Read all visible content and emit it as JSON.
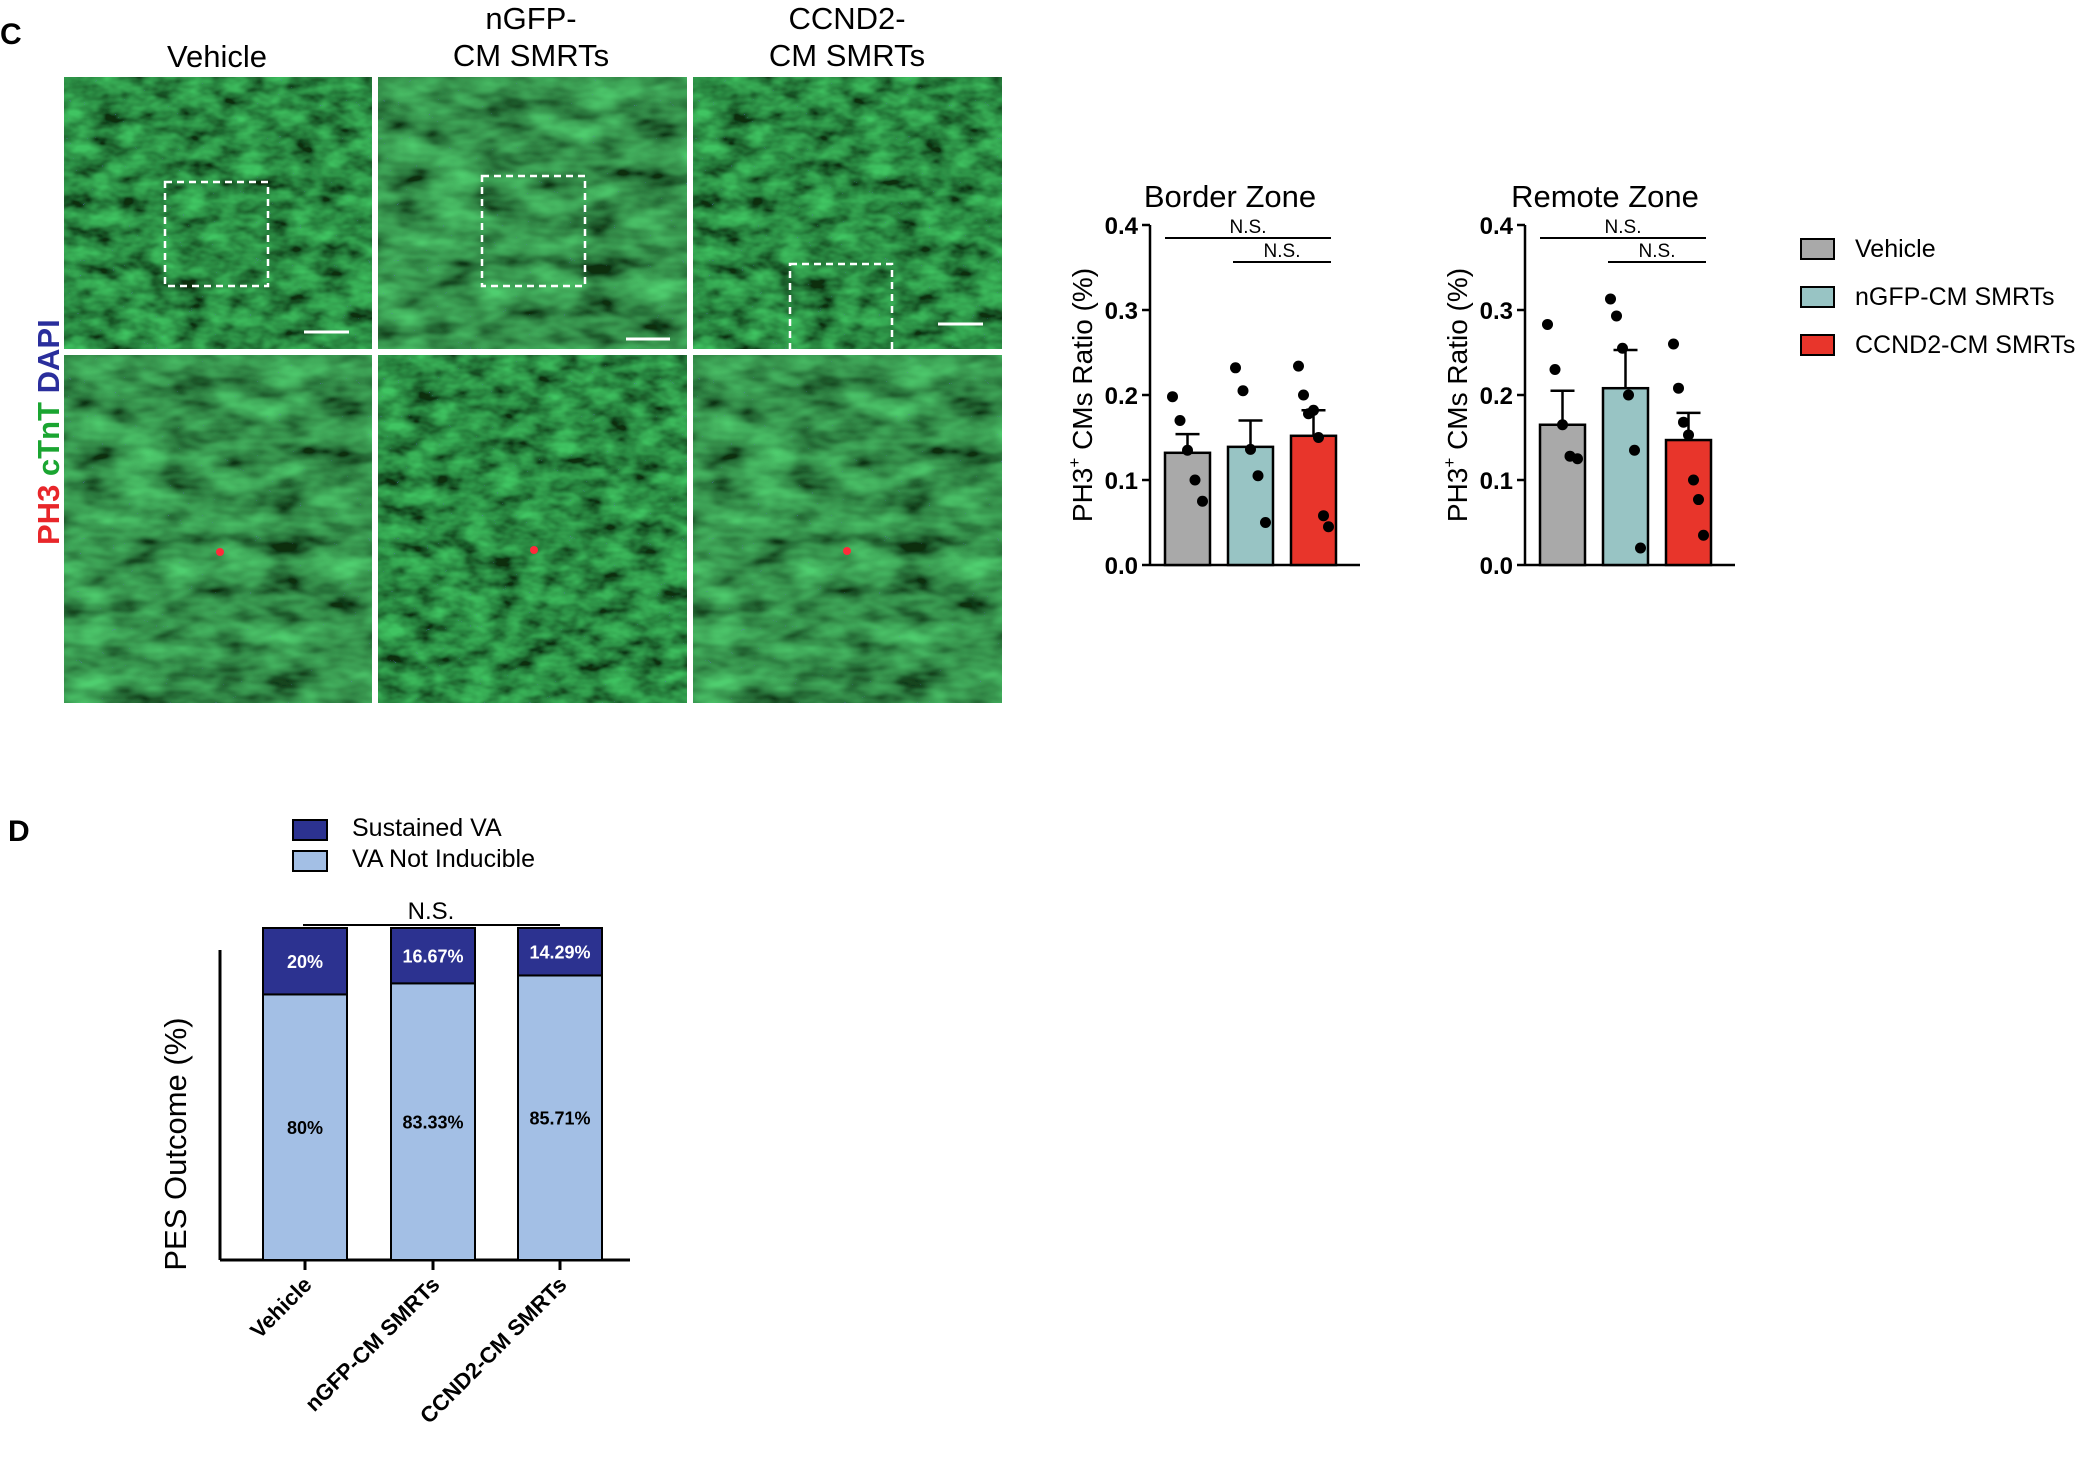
{
  "panel_c": {
    "letter": "C",
    "stain_labels": [
      {
        "text": "PH3",
        "color": "#e8262a"
      },
      {
        "text": "cTnT",
        "color": "#1aa531"
      },
      {
        "text": "DAPI",
        "color": "#2a2e9c"
      }
    ],
    "columns": [
      {
        "line1": "Vehicle",
        "line2": ""
      },
      {
        "line1": "nGFP-",
        "line2": "CM SMRTs"
      },
      {
        "line1": "CCND2-",
        "line2": "CM SMRTs"
      }
    ]
  },
  "panel_d": {
    "letter": "D"
  },
  "legend": {
    "items": [
      {
        "label": "Vehicle",
        "color": "#a9a9a9"
      },
      {
        "label": "nGFP-CM SMRTs",
        "color": "#98c4c4"
      },
      {
        "label": "CCND2-CM SMRTs",
        "color": "#e8352b"
      }
    ]
  },
  "chart_data": [
    {
      "type": "bar",
      "title": "Border Zone",
      "ylabel": "PH3⁺ CMs Ratio (%)",
      "ylabel_main": "PH3",
      "ylabel_sup": "+",
      "ylabel_rest": " CMs Ratio (%)",
      "ylim": [
        0,
        0.4
      ],
      "yticks": [
        "0.0",
        "0.1",
        "0.2",
        "0.3",
        "0.4"
      ],
      "categories": [
        "Vehicle",
        "nGFP-CM SMRTs",
        "CCND2-CM SMRTs"
      ],
      "values": [
        0.132,
        0.139,
        0.152
      ],
      "errors": [
        0.022,
        0.031,
        0.03
      ],
      "points": [
        [
          0.198,
          0.17,
          0.135,
          0.1,
          0.075
        ],
        [
          0.232,
          0.205,
          0.136,
          0.105,
          0.05
        ],
        [
          0.234,
          0.2,
          0.178,
          0.182,
          0.15,
          0.058,
          0.045
        ]
      ],
      "significance": [
        {
          "from": 0,
          "to": 2,
          "label": "N.S."
        },
        {
          "from": 1,
          "to": 2,
          "label": "N.S."
        }
      ]
    },
    {
      "type": "bar",
      "title": "Remote Zone",
      "ylabel": "PH3⁺ CMs Ratio (%)",
      "ylabel_main": "PH3",
      "ylabel_sup": "+",
      "ylabel_rest": " CMs Ratio (%)",
      "ylim": [
        0,
        0.4
      ],
      "yticks": [
        "0.0",
        "0.1",
        "0.2",
        "0.3",
        "0.4"
      ],
      "categories": [
        "Vehicle",
        "nGFP-CM SMRTs",
        "CCND2-CM SMRTs"
      ],
      "values": [
        0.165,
        0.208,
        0.147
      ],
      "errors": [
        0.04,
        0.045,
        0.032
      ],
      "points": [
        [
          0.283,
          0.23,
          0.165,
          0.128,
          0.125
        ],
        [
          0.313,
          0.293,
          0.255,
          0.2,
          0.135,
          0.02
        ],
        [
          0.26,
          0.208,
          0.168,
          0.153,
          0.1,
          0.077,
          0.035
        ]
      ],
      "significance": [
        {
          "from": 0,
          "to": 2,
          "label": "N.S."
        },
        {
          "from": 1,
          "to": 2,
          "label": "N.S."
        }
      ]
    },
    {
      "type": "bar",
      "stacked": true,
      "ylabel": "PES Outcome (%)",
      "categories": [
        "Vehicle",
        "nGFP-CM SMRTs",
        "CCND2-CM SMRTs"
      ],
      "series": [
        {
          "name": "VA Not Inducible",
          "color": "#a3bfe5",
          "values": [
            80,
            83.33,
            85.71
          ],
          "labels": [
            "80%",
            "83.33%",
            "85.71%"
          ]
        },
        {
          "name": "Sustained VA",
          "color": "#2c3290",
          "values": [
            20,
            16.67,
            14.29
          ],
          "labels": [
            "20%",
            "16.67%",
            "14.29%"
          ]
        }
      ],
      "significance": [
        {
          "from": 0,
          "to": 2,
          "label": "N.S."
        }
      ]
    }
  ]
}
